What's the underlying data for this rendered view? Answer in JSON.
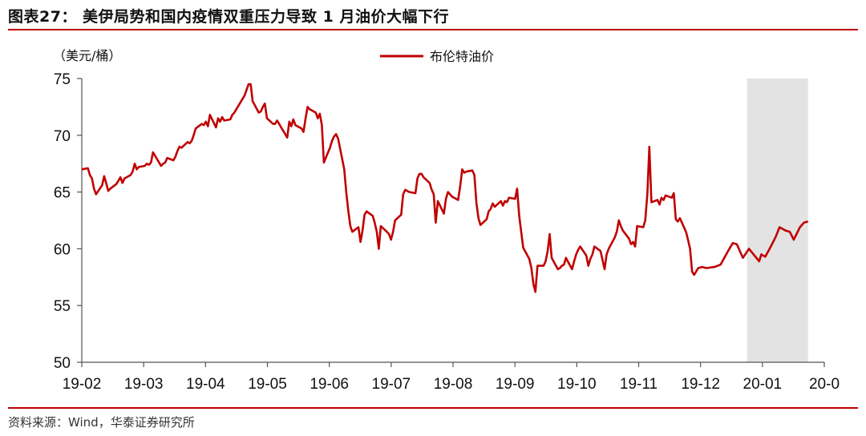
{
  "header": {
    "title": "图表27： 美伊局势和国内疫情双重压力导致 1 月油价大幅下行"
  },
  "footer": {
    "source": "资料来源：Wind，华泰证券研究所"
  },
  "colors": {
    "accent": "#c00000",
    "line": "#c00000",
    "shade": "#e3e3e3"
  },
  "chart_data": {
    "type": "line",
    "title": "",
    "xlabel": "",
    "ylabel": "（美元/桶）",
    "ylim": [
      50,
      75
    ],
    "yticks": [
      50,
      55,
      60,
      65,
      70,
      75
    ],
    "x_tick_labels": [
      "19-02",
      "19-03",
      "19-04",
      "19-05",
      "19-06",
      "19-07",
      "19-08",
      "19-09",
      "19-10",
      "19-11",
      "19-12",
      "20-01",
      "20-0"
    ],
    "x_range": [
      "2019-02-01",
      "2020-02-01"
    ],
    "legend": {
      "placement": "top-center"
    },
    "grid": false,
    "shaded_region": {
      "start": "2019-12-25",
      "end": "2020-01-24"
    },
    "series": [
      {
        "name": "布伦特油价",
        "points": [
          [
            "2019-02-01",
            67.0
          ],
          [
            "2019-02-04",
            67.1
          ],
          [
            "2019-02-05",
            66.5
          ],
          [
            "2019-02-06",
            66.2
          ],
          [
            "2019-02-07",
            65.3
          ],
          [
            "2019-02-08",
            64.8
          ],
          [
            "2019-02-11",
            65.6
          ],
          [
            "2019-02-12",
            66.4
          ],
          [
            "2019-02-13",
            65.8
          ],
          [
            "2019-02-14",
            65.1
          ],
          [
            "2019-02-15",
            65.3
          ],
          [
            "2019-02-18",
            65.7
          ],
          [
            "2019-02-19",
            66.0
          ],
          [
            "2019-02-20",
            66.3
          ],
          [
            "2019-02-21",
            65.8
          ],
          [
            "2019-02-22",
            66.2
          ],
          [
            "2019-02-25",
            66.5
          ],
          [
            "2019-02-26",
            66.8
          ],
          [
            "2019-02-27",
            67.5
          ],
          [
            "2019-02-28",
            67.0
          ],
          [
            "2019-03-01",
            67.2
          ],
          [
            "2019-03-04",
            67.3
          ],
          [
            "2019-03-05",
            67.5
          ],
          [
            "2019-03-06",
            67.4
          ],
          [
            "2019-03-07",
            67.6
          ],
          [
            "2019-03-08",
            68.5
          ],
          [
            "2019-03-11",
            67.6
          ],
          [
            "2019-03-12",
            67.3
          ],
          [
            "2019-03-13",
            67.5
          ],
          [
            "2019-03-14",
            67.6
          ],
          [
            "2019-03-15",
            68.0
          ],
          [
            "2019-03-18",
            67.8
          ],
          [
            "2019-03-19",
            68.1
          ],
          [
            "2019-03-20",
            68.6
          ],
          [
            "2019-03-21",
            69.0
          ],
          [
            "2019-03-22",
            68.9
          ],
          [
            "2019-03-25",
            69.4
          ],
          [
            "2019-03-26",
            69.3
          ],
          [
            "2019-03-27",
            69.5
          ],
          [
            "2019-03-28",
            70.0
          ],
          [
            "2019-03-29",
            70.6
          ],
          [
            "2019-04-01",
            71.0
          ],
          [
            "2019-04-02",
            70.9
          ],
          [
            "2019-04-03",
            71.2
          ],
          [
            "2019-04-04",
            70.8
          ],
          [
            "2019-04-05",
            71.8
          ],
          [
            "2019-04-08",
            70.7
          ],
          [
            "2019-04-09",
            71.5
          ],
          [
            "2019-04-10",
            71.2
          ],
          [
            "2019-04-11",
            71.6
          ],
          [
            "2019-04-12",
            71.3
          ],
          [
            "2019-04-15",
            71.4
          ],
          [
            "2019-04-16",
            71.8
          ],
          [
            "2019-04-17",
            72.0
          ],
          [
            "2019-04-18",
            72.3
          ],
          [
            "2019-04-22",
            73.5
          ],
          [
            "2019-04-23",
            74.0
          ],
          [
            "2019-04-24",
            74.5
          ],
          [
            "2019-04-25",
            74.5
          ],
          [
            "2019-04-26",
            73.0
          ],
          [
            "2019-04-29",
            72.0
          ],
          [
            "2019-04-30",
            72.1
          ],
          [
            "2019-05-01",
            72.5
          ],
          [
            "2019-05-02",
            72.8
          ],
          [
            "2019-05-03",
            71.5
          ],
          [
            "2019-05-06",
            71.0
          ],
          [
            "2019-05-07",
            71.0
          ],
          [
            "2019-05-08",
            71.3
          ],
          [
            "2019-05-09",
            71.0
          ],
          [
            "2019-05-10",
            70.7
          ],
          [
            "2019-05-13",
            69.8
          ],
          [
            "2019-05-14",
            71.2
          ],
          [
            "2019-05-15",
            70.8
          ],
          [
            "2019-05-16",
            71.4
          ],
          [
            "2019-05-17",
            70.9
          ],
          [
            "2019-05-20",
            70.6
          ],
          [
            "2019-05-21",
            70.3
          ],
          [
            "2019-05-22",
            71.5
          ],
          [
            "2019-05-23",
            72.5
          ],
          [
            "2019-05-24",
            72.3
          ],
          [
            "2019-05-27",
            72.0
          ],
          [
            "2019-05-28",
            71.5
          ],
          [
            "2019-05-29",
            71.9
          ],
          [
            "2019-05-30",
            70.9
          ],
          [
            "2019-05-31",
            67.6
          ],
          [
            "2019-06-03",
            68.9
          ],
          [
            "2019-06-04",
            69.5
          ],
          [
            "2019-06-05",
            69.9
          ],
          [
            "2019-06-06",
            70.1
          ],
          [
            "2019-06-07",
            69.7
          ],
          [
            "2019-06-10",
            67.0
          ],
          [
            "2019-06-11",
            65.0
          ],
          [
            "2019-06-12",
            63.4
          ],
          [
            "2019-06-13",
            62.0
          ],
          [
            "2019-06-14",
            61.5
          ],
          [
            "2019-06-17",
            61.9
          ],
          [
            "2019-06-18",
            60.6
          ],
          [
            "2019-06-19",
            61.6
          ],
          [
            "2019-06-20",
            63.0
          ],
          [
            "2019-06-21",
            63.3
          ],
          [
            "2019-06-24",
            62.9
          ],
          [
            "2019-06-25",
            62.3
          ],
          [
            "2019-06-26",
            61.5
          ],
          [
            "2019-06-27",
            60.0
          ],
          [
            "2019-06-28",
            62.0
          ],
          [
            "2019-07-01",
            61.5
          ],
          [
            "2019-07-02",
            61.3
          ],
          [
            "2019-07-03",
            60.8
          ],
          [
            "2019-07-04",
            61.5
          ],
          [
            "2019-07-05",
            62.5
          ],
          [
            "2019-07-08",
            63.0
          ],
          [
            "2019-07-09",
            64.8
          ],
          [
            "2019-07-10",
            65.2
          ],
          [
            "2019-07-11",
            65.1
          ],
          [
            "2019-07-12",
            65.0
          ],
          [
            "2019-07-15",
            64.9
          ],
          [
            "2019-07-16",
            66.2
          ],
          [
            "2019-07-17",
            66.6
          ],
          [
            "2019-07-18",
            66.6
          ],
          [
            "2019-07-19",
            66.3
          ],
          [
            "2019-07-22",
            65.8
          ],
          [
            "2019-07-23",
            65.2
          ],
          [
            "2019-07-24",
            64.8
          ],
          [
            "2019-07-25",
            62.3
          ],
          [
            "2019-07-26",
            64.2
          ],
          [
            "2019-07-29",
            63.1
          ],
          [
            "2019-07-30",
            64.4
          ],
          [
            "2019-07-31",
            65.0
          ],
          [
            "2019-08-01",
            64.8
          ],
          [
            "2019-08-02",
            64.6
          ],
          [
            "2019-08-05",
            64.3
          ],
          [
            "2019-08-06",
            65.5
          ],
          [
            "2019-08-07",
            67.0
          ],
          [
            "2019-08-08",
            66.7
          ],
          [
            "2019-08-09",
            66.8
          ],
          [
            "2019-08-12",
            66.9
          ],
          [
            "2019-08-13",
            66.5
          ],
          [
            "2019-08-14",
            64.0
          ],
          [
            "2019-08-15",
            62.7
          ],
          [
            "2019-08-16",
            62.1
          ],
          [
            "2019-08-19",
            62.6
          ],
          [
            "2019-08-20",
            63.3
          ],
          [
            "2019-08-21",
            63.5
          ],
          [
            "2019-08-22",
            64.0
          ],
          [
            "2019-08-23",
            63.7
          ],
          [
            "2019-08-26",
            64.2
          ],
          [
            "2019-08-27",
            63.8
          ],
          [
            "2019-08-28",
            64.2
          ],
          [
            "2019-08-29",
            64.1
          ],
          [
            "2019-08-30",
            64.5
          ],
          [
            "2019-09-02",
            64.4
          ],
          [
            "2019-09-03",
            65.3
          ],
          [
            "2019-09-04",
            62.9
          ],
          [
            "2019-09-05",
            61.5
          ],
          [
            "2019-09-06",
            60.1
          ],
          [
            "2019-09-09",
            59.1
          ],
          [
            "2019-09-10",
            58.3
          ],
          [
            "2019-09-11",
            56.9
          ],
          [
            "2019-09-12",
            56.2
          ],
          [
            "2019-09-13",
            58.5
          ],
          [
            "2019-09-16",
            58.5
          ],
          [
            "2019-09-17",
            58.9
          ],
          [
            "2019-09-18",
            59.8
          ],
          [
            "2019-09-19",
            61.3
          ],
          [
            "2019-09-20",
            59.2
          ],
          [
            "2019-09-23",
            58.2
          ],
          [
            "2019-09-24",
            58.3
          ],
          [
            "2019-09-25",
            58.5
          ],
          [
            "2019-09-26",
            58.6
          ],
          [
            "2019-09-27",
            59.2
          ],
          [
            "2019-09-30",
            58.2
          ],
          [
            "2019-10-01",
            58.9
          ],
          [
            "2019-10-02",
            59.5
          ],
          [
            "2019-10-03",
            59.9
          ],
          [
            "2019-10-04",
            60.2
          ],
          [
            "2019-10-07",
            59.4
          ],
          [
            "2019-10-08",
            58.5
          ],
          [
            "2019-10-09",
            59.1
          ],
          [
            "2019-10-10",
            59.5
          ],
          [
            "2019-10-11",
            60.2
          ],
          [
            "2019-10-14",
            59.8
          ],
          [
            "2019-10-15",
            59.0
          ],
          [
            "2019-10-16",
            58.2
          ],
          [
            "2019-10-17",
            59.5
          ],
          [
            "2019-10-18",
            60.0
          ],
          [
            "2019-10-21",
            61.0
          ],
          [
            "2019-10-22",
            61.5
          ],
          [
            "2019-10-23",
            62.5
          ],
          [
            "2019-10-24",
            62.0
          ],
          [
            "2019-10-25",
            61.6
          ],
          [
            "2019-10-28",
            60.9
          ],
          [
            "2019-10-29",
            60.4
          ],
          [
            "2019-10-30",
            60.6
          ],
          [
            "2019-10-31",
            60.2
          ],
          [
            "2019-11-01",
            62.0
          ],
          [
            "2019-11-04",
            61.9
          ],
          [
            "2019-11-05",
            62.5
          ],
          [
            "2019-11-06",
            64.8
          ],
          [
            "2019-11-07",
            69.0
          ],
          [
            "2019-11-08",
            64.1
          ],
          [
            "2019-11-11",
            64.3
          ],
          [
            "2019-11-12",
            63.9
          ],
          [
            "2019-11-13",
            64.5
          ],
          [
            "2019-11-14",
            64.3
          ],
          [
            "2019-11-15",
            64.7
          ],
          [
            "2019-11-18",
            64.5
          ],
          [
            "2019-11-19",
            64.9
          ],
          [
            "2019-11-20",
            62.6
          ],
          [
            "2019-11-21",
            62.4
          ],
          [
            "2019-11-22",
            62.7
          ],
          [
            "2019-11-25",
            61.5
          ],
          [
            "2019-11-26",
            60.8
          ],
          [
            "2019-11-27",
            60.0
          ],
          [
            "2019-11-28",
            58.0
          ],
          [
            "2019-11-29",
            57.7
          ],
          [
            "2019-12-01",
            58.3
          ],
          [
            "2019-12-03",
            58.4
          ],
          [
            "2019-12-05",
            58.3
          ],
          [
            "2019-12-09",
            58.4
          ],
          [
            "2019-12-12",
            58.6
          ],
          [
            "2019-12-16",
            59.9
          ],
          [
            "2019-12-18",
            60.5
          ],
          [
            "2019-12-20",
            60.4
          ],
          [
            "2019-12-23",
            59.2
          ],
          [
            "2019-12-26",
            60.0
          ],
          [
            "2019-12-31",
            58.9
          ],
          [
            "2020-01-01",
            59.5
          ],
          [
            "2020-01-03",
            59.3
          ],
          [
            "2020-01-06",
            60.3
          ],
          [
            "2020-01-08",
            61.0
          ],
          [
            "2020-01-10",
            61.9
          ],
          [
            "2020-01-13",
            61.6
          ],
          [
            "2020-01-15",
            61.5
          ],
          [
            "2020-01-17",
            60.8
          ],
          [
            "2020-01-20",
            61.9
          ],
          [
            "2020-01-22",
            62.3
          ],
          [
            "2020-01-24",
            62.4
          ]
        ]
      }
    ]
  },
  "legend_label": "布伦特油价"
}
